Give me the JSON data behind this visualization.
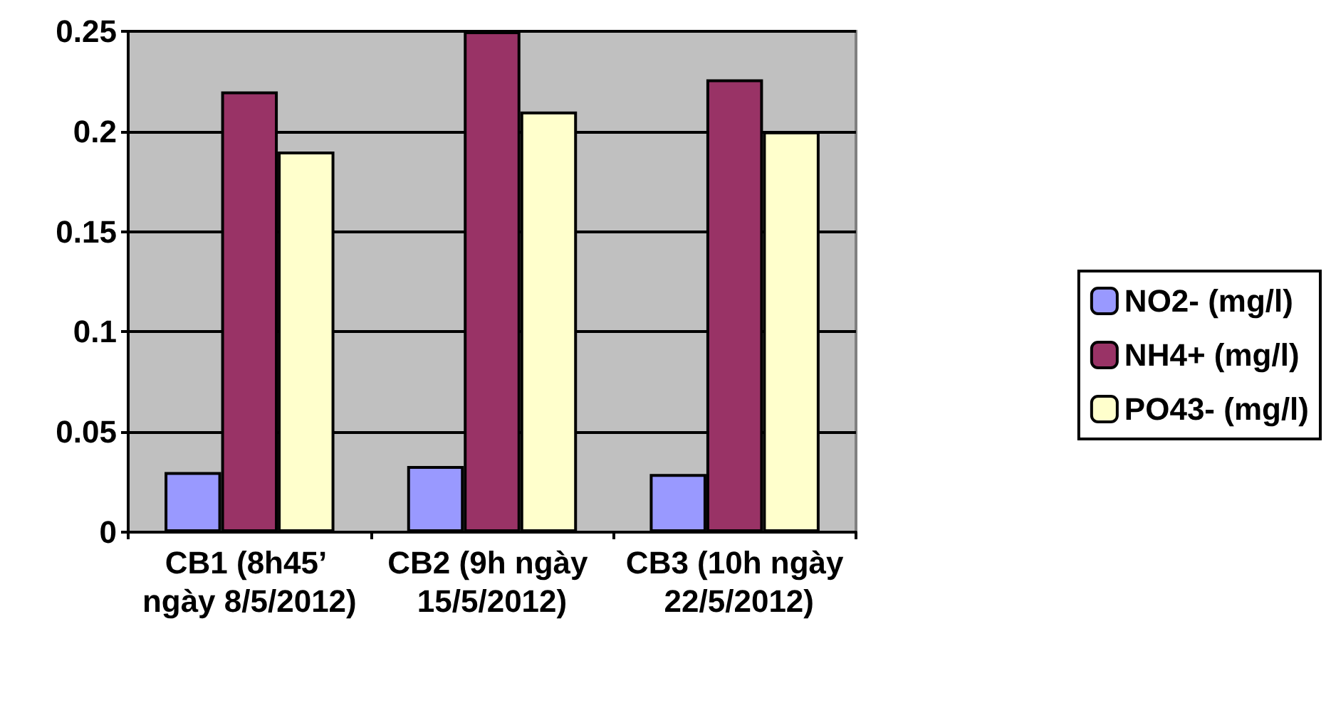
{
  "chart_data": {
    "type": "bar",
    "categories": [
      "CB1 (8h45’ ngày 8/5/2012)",
      "CB2 (9h ngày 15/5/2012)",
      "CB3 (10h ngày 22/5/2012)"
    ],
    "series": [
      {
        "name": "NO2- (mg/l)",
        "color": "#9999ff",
        "values": [
          0.03,
          0.033,
          0.029
        ]
      },
      {
        "name": "NH4+ (mg/l)",
        "color": "#993366",
        "values": [
          0.22,
          0.25,
          0.226
        ]
      },
      {
        "name": "PO43- (mg/l)",
        "color": "#ffffcc",
        "values": [
          0.19,
          0.21,
          0.2
        ]
      }
    ],
    "ylim": [
      0,
      0.25
    ],
    "yticks": [
      0,
      0.05,
      0.1,
      0.15,
      0.2,
      0.25
    ],
    "grid": "y",
    "legend": "right"
  }
}
